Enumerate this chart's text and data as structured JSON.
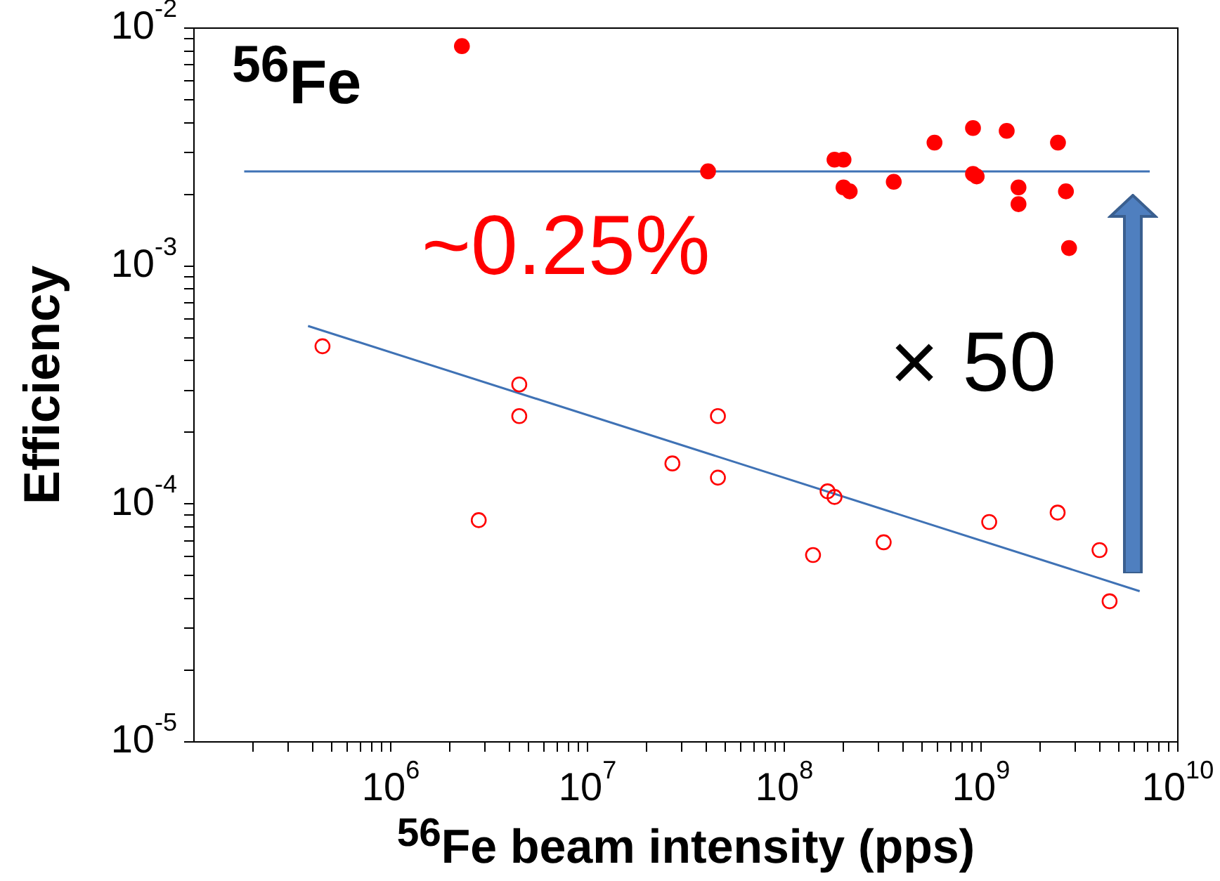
{
  "chart_data": {
    "type": "scatter",
    "xlabel": "$^{56}$Fe beam intensity (pps)",
    "ylabel": "Efficiency",
    "log": "xy",
    "grid": false,
    "xlim": [
      100000,
      10000000000
    ],
    "ylim": [
      1e-05,
      0.01
    ],
    "xticks": [
      {
        "value": 200000,
        "label": null
      },
      {
        "value": 300000,
        "label": null
      },
      {
        "value": 400000,
        "label": null
      },
      {
        "value": 500000,
        "label": null
      },
      {
        "value": 600000,
        "label": null
      },
      {
        "value": 700000,
        "label": null
      },
      {
        "value": 800000,
        "label": null
      },
      {
        "value": 900000,
        "label": null
      },
      {
        "value": 1000000,
        "label": "10$^{6}$"
      },
      {
        "value": 2000000,
        "label": null
      },
      {
        "value": 3000000,
        "label": null
      },
      {
        "value": 4000000,
        "label": null
      },
      {
        "value": 5000000,
        "label": null
      },
      {
        "value": 6000000,
        "label": null
      },
      {
        "value": 7000000,
        "label": null
      },
      {
        "value": 8000000,
        "label": null
      },
      {
        "value": 9000000,
        "label": null
      },
      {
        "value": 10000000,
        "label": "10$^{7}$"
      },
      {
        "value": 20000000,
        "label": null
      },
      {
        "value": 30000000,
        "label": null
      },
      {
        "value": 40000000,
        "label": null
      },
      {
        "value": 50000000,
        "label": null
      },
      {
        "value": 60000000,
        "label": null
      },
      {
        "value": 70000000,
        "label": null
      },
      {
        "value": 80000000,
        "label": null
      },
      {
        "value": 90000000,
        "label": null
      },
      {
        "value": 100000000,
        "label": "10$^{8}$"
      },
      {
        "value": 200000000,
        "label": null
      },
      {
        "value": 300000000,
        "label": null
      },
      {
        "value": 400000000,
        "label": null
      },
      {
        "value": 500000000,
        "label": null
      },
      {
        "value": 600000000,
        "label": null
      },
      {
        "value": 700000000,
        "label": null
      },
      {
        "value": 800000000,
        "label": null
      },
      {
        "value": 900000000,
        "label": null
      },
      {
        "value": 1000000000,
        "label": "10$^{9}$"
      },
      {
        "value": 2000000000,
        "label": null
      },
      {
        "value": 3000000000,
        "label": null
      },
      {
        "value": 4000000000,
        "label": null
      },
      {
        "value": 5000000000,
        "label": null
      },
      {
        "value": 6000000000,
        "label": null
      },
      {
        "value": 7000000000,
        "label": null
      },
      {
        "value": 8000000000,
        "label": null
      },
      {
        "value": 9000000000,
        "label": null
      },
      {
        "value": 10000000000,
        "label": "10$^{10}$"
      }
    ],
    "yticks": [
      {
        "value": 1e-05,
        "label": "10$^{-5}$"
      },
      {
        "value": 2e-05,
        "label": null
      },
      {
        "value": 3e-05,
        "label": null
      },
      {
        "value": 4e-05,
        "label": null
      },
      {
        "value": 5e-05,
        "label": null
      },
      {
        "value": 6e-05,
        "label": null
      },
      {
        "value": 7e-05,
        "label": null
      },
      {
        "value": 8e-05,
        "label": null
      },
      {
        "value": 9e-05,
        "label": null
      },
      {
        "value": 0.0001,
        "label": "10$^{-4}$"
      },
      {
        "value": 0.0002,
        "label": null
      },
      {
        "value": 0.0003,
        "label": null
      },
      {
        "value": 0.0004,
        "label": null
      },
      {
        "value": 0.0005,
        "label": null
      },
      {
        "value": 0.0006,
        "label": null
      },
      {
        "value": 0.0007,
        "label": null
      },
      {
        "value": 0.0008,
        "label": null
      },
      {
        "value": 0.0009,
        "label": null
      },
      {
        "value": 0.001,
        "label": "10$^{-3}$"
      },
      {
        "value": 0.002,
        "label": null
      },
      {
        "value": 0.003,
        "label": null
      },
      {
        "value": 0.004,
        "label": null
      },
      {
        "value": 0.005,
        "label": null
      },
      {
        "value": 0.006,
        "label": null
      },
      {
        "value": 0.007,
        "label": null
      },
      {
        "value": 0.008,
        "label": null
      },
      {
        "value": 0.009,
        "label": null
      },
      {
        "value": 0.01,
        "label": "10$^{-2}$"
      }
    ],
    "series": [
      {
        "marker": "circle",
        "color": "#ff0000",
        "x": [
          2300000,
          41000000,
          180000000,
          200000000,
          200000000,
          215000000,
          360000000,
          580000000,
          910000000,
          910000000,
          950000000,
          1350000000,
          1550000000,
          1550000000,
          2460000000,
          2700000000,
          2800000000
        ],
        "values": [
          0.0084,
          0.0025,
          0.0028,
          0.0028,
          0.00214,
          0.00206,
          0.00226,
          0.0033,
          0.0038,
          0.00244,
          0.00238,
          0.0037,
          0.00214,
          0.00182,
          0.0033,
          0.00206,
          0.00119
        ]
      },
      {
        "marker": "circle",
        "color": "#ff0000",
        "x": [
          450000,
          2800000,
          4500000,
          4500000,
          27000000,
          46000000,
          46000000,
          140000000,
          166000000,
          180000000,
          320000000,
          1100000000,
          2450000000,
          4000000000,
          4500000000
        ],
        "values": [
          0.00046,
          8.55e-05,
          0.000318,
          0.000234,
          0.000148,
          0.000234,
          0.000129,
          6.1e-05,
          0.000113,
          0.000107,
          6.9e-05,
          8.4e-05,
          9.2e-05,
          6.4e-05,
          3.9e-05
        ]
      },
      {
        "type": "line",
        "color": "#3f72b5",
        "x": [
          180000,
          7200000000
        ],
        "values": [
          0.0025,
          0.0025
        ]
      },
      {
        "type": "line",
        "color": "#3f72b5",
        "x": [
          380000,
          6400000000
        ],
        "values": [
          0.00056,
          4.3e-05
        ]
      }
    ],
    "annotations": [
      "$^{56}$Fe",
      "~0.25%",
      "× 50"
    ]
  }
}
